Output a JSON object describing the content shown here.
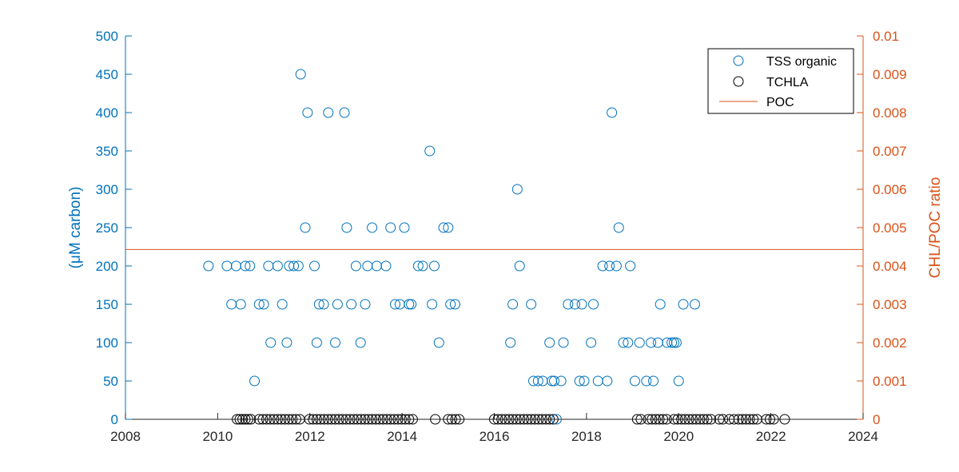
{
  "chart_data": {
    "type": "scatter",
    "title": "",
    "xlabel": "",
    "ylabel_left": "(μM carbon)",
    "ylabel_right": "CHL/POC ratio",
    "xlim": [
      2008,
      2024
    ],
    "ylim_left": [
      0,
      500
    ],
    "ylim_right": [
      0,
      0.01
    ],
    "x_ticks": [
      "2008",
      "2010",
      "2012",
      "2014",
      "2016",
      "2018",
      "2020",
      "2022",
      "2024"
    ],
    "y_left_ticks": [
      "0",
      "50",
      "100",
      "150",
      "200",
      "250",
      "300",
      "350",
      "400",
      "450",
      "500"
    ],
    "y_right_ticks": [
      "0",
      "0.001",
      "0.002",
      "0.003",
      "0.004",
      "0.005",
      "0.006",
      "0.007",
      "0.008",
      "0.009",
      "0.01"
    ],
    "grid": false,
    "legend_position": "top-right",
    "colors": {
      "left_axis": "#0072BD",
      "right_axis": "#D95319",
      "tchla": "#000000",
      "axis": "#262626"
    },
    "series": [
      {
        "name": "TSS organic",
        "marker": "circle-open",
        "axis": "left",
        "color": "#0072BD",
        "points": [
          [
            2009.8,
            200
          ],
          [
            2010.2,
            200
          ],
          [
            2010.3,
            150
          ],
          [
            2010.4,
            200
          ],
          [
            2010.5,
            150
          ],
          [
            2010.6,
            200
          ],
          [
            2010.7,
            200
          ],
          [
            2010.8,
            50
          ],
          [
            2010.9,
            150
          ],
          [
            2011.0,
            150
          ],
          [
            2011.1,
            200
          ],
          [
            2011.15,
            100
          ],
          [
            2011.3,
            200
          ],
          [
            2011.4,
            150
          ],
          [
            2011.5,
            100
          ],
          [
            2011.55,
            200
          ],
          [
            2011.65,
            200
          ],
          [
            2011.75,
            200
          ],
          [
            2011.8,
            450
          ],
          [
            2011.9,
            250
          ],
          [
            2011.95,
            400
          ],
          [
            2012.1,
            200
          ],
          [
            2012.15,
            100
          ],
          [
            2012.2,
            150
          ],
          [
            2012.3,
            150
          ],
          [
            2012.4,
            400
          ],
          [
            2012.55,
            100
          ],
          [
            2012.6,
            150
          ],
          [
            2012.75,
            400
          ],
          [
            2012.8,
            250
          ],
          [
            2012.9,
            150
          ],
          [
            2013.0,
            200
          ],
          [
            2013.1,
            100
          ],
          [
            2013.2,
            150
          ],
          [
            2013.25,
            200
          ],
          [
            2013.35,
            250
          ],
          [
            2013.45,
            200
          ],
          [
            2013.65,
            200
          ],
          [
            2013.75,
            250
          ],
          [
            2013.85,
            150
          ],
          [
            2013.95,
            150
          ],
          [
            2014.05,
            250
          ],
          [
            2014.15,
            150
          ],
          [
            2014.2,
            150
          ],
          [
            2014.35,
            200
          ],
          [
            2014.45,
            200
          ],
          [
            2014.6,
            350
          ],
          [
            2014.65,
            150
          ],
          [
            2014.7,
            200
          ],
          [
            2014.8,
            100
          ],
          [
            2014.9,
            250
          ],
          [
            2015.0,
            250
          ],
          [
            2015.05,
            150
          ],
          [
            2015.15,
            150
          ],
          [
            2016.35,
            100
          ],
          [
            2016.4,
            150
          ],
          [
            2016.5,
            300
          ],
          [
            2016.55,
            200
          ],
          [
            2016.8,
            150
          ],
          [
            2016.85,
            50
          ],
          [
            2016.95,
            50
          ],
          [
            2017.05,
            50
          ],
          [
            2017.2,
            100
          ],
          [
            2017.25,
            50
          ],
          [
            2017.3,
            50
          ],
          [
            2017.35,
            0
          ],
          [
            2017.45,
            50
          ],
          [
            2017.5,
            100
          ],
          [
            2017.6,
            150
          ],
          [
            2017.75,
            150
          ],
          [
            2017.85,
            50
          ],
          [
            2017.9,
            150
          ],
          [
            2017.95,
            50
          ],
          [
            2018.1,
            100
          ],
          [
            2018.15,
            150
          ],
          [
            2018.25,
            50
          ],
          [
            2018.35,
            200
          ],
          [
            2018.45,
            50
          ],
          [
            2018.5,
            200
          ],
          [
            2018.55,
            400
          ],
          [
            2018.65,
            200
          ],
          [
            2018.7,
            250
          ],
          [
            2018.8,
            100
          ],
          [
            2018.9,
            100
          ],
          [
            2018.95,
            200
          ],
          [
            2019.05,
            50
          ],
          [
            2019.15,
            100
          ],
          [
            2019.3,
            50
          ],
          [
            2019.4,
            100
          ],
          [
            2019.45,
            50
          ],
          [
            2019.55,
            100
          ],
          [
            2019.6,
            150
          ],
          [
            2019.75,
            100
          ],
          [
            2019.85,
            100
          ],
          [
            2019.9,
            100
          ],
          [
            2019.95,
            100
          ],
          [
            2020.0,
            50
          ],
          [
            2020.1,
            150
          ],
          [
            2020.35,
            150
          ]
        ]
      },
      {
        "name": "TCHLA",
        "marker": "circle-open",
        "axis": "right",
        "color": "#000000",
        "x": [
          2010.42,
          2010.48,
          2010.54,
          2010.6,
          2010.66,
          2010.72,
          2010.9,
          2010.98,
          2011.06,
          2011.14,
          2011.22,
          2011.3,
          2011.38,
          2011.46,
          2011.54,
          2011.62,
          2011.7,
          2011.78,
          2011.99,
          2012.07,
          2012.15,
          2012.23,
          2012.31,
          2012.39,
          2012.47,
          2012.55,
          2012.63,
          2012.71,
          2012.79,
          2012.87,
          2012.95,
          2013.03,
          2013.11,
          2013.19,
          2013.27,
          2013.35,
          2013.43,
          2013.51,
          2013.59,
          2013.67,
          2013.75,
          2013.83,
          2013.91,
          2013.99,
          2014.07,
          2014.15,
          2014.23,
          2014.72,
          2015.0,
          2015.08,
          2015.16,
          2015.24,
          2016.0,
          2016.08,
          2016.16,
          2016.24,
          2016.32,
          2016.4,
          2016.48,
          2016.56,
          2016.64,
          2016.72,
          2016.8,
          2016.88,
          2016.96,
          2017.04,
          2017.12,
          2017.2,
          2017.28,
          2019.1,
          2019.18,
          2019.34,
          2019.42,
          2019.5,
          2019.58,
          2019.66,
          2019.74,
          2019.9,
          2019.98,
          2020.06,
          2020.14,
          2020.22,
          2020.3,
          2020.38,
          2020.46,
          2020.54,
          2020.62,
          2020.7,
          2020.88,
          2020.96,
          2021.1,
          2021.2,
          2021.3,
          2021.38,
          2021.46,
          2021.54,
          2021.62,
          2021.7,
          2021.9,
          2021.98,
          2022.06,
          2022.3
        ],
        "y": 0.0
      },
      {
        "name": "POC",
        "marker": "line",
        "axis": "right",
        "color": "#D95319",
        "x": [
          2008,
          2024
        ],
        "y": [
          0.00443,
          0.00443
        ]
      }
    ]
  }
}
